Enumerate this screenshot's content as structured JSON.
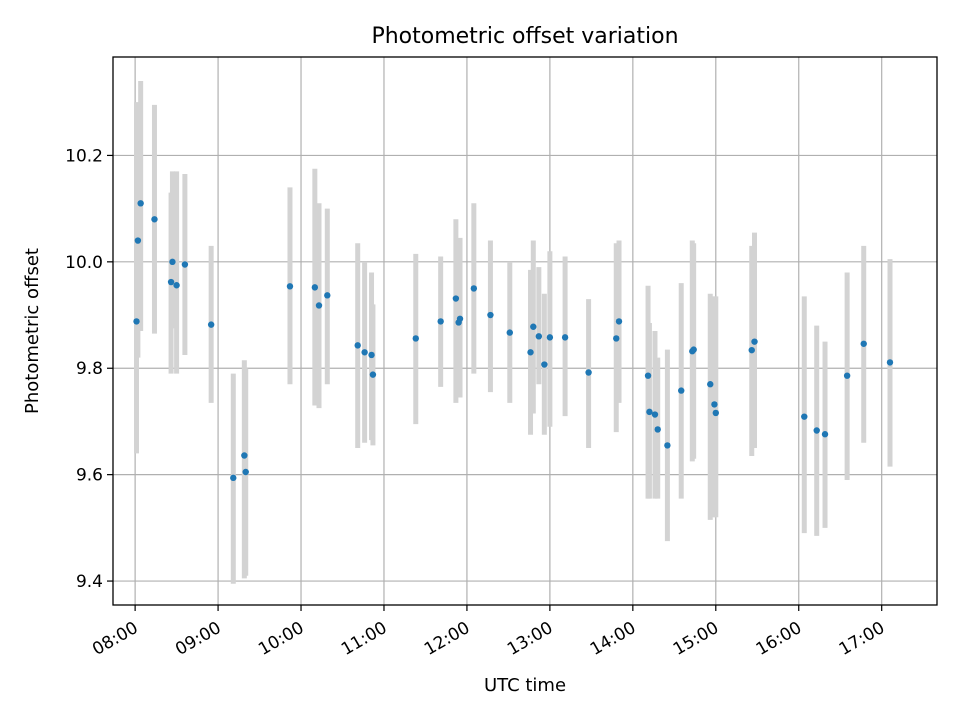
{
  "chart_data": {
    "type": "scatter",
    "title": "Photometric offset variation",
    "xlabel": "UTC time",
    "ylabel": "Photometric offset",
    "x_ticks": [
      "08:00",
      "09:00",
      "10:00",
      "11:00",
      "12:00",
      "13:00",
      "14:00",
      "15:00",
      "16:00",
      "17:00"
    ],
    "y_ticks": [
      9.4,
      9.6,
      9.8,
      10.0,
      10.2
    ],
    "y_tick_labels": [
      "9.4",
      "9.6",
      "9.8",
      "10.0",
      "10.2"
    ],
    "xlim": [
      "07:44",
      "17:40"
    ],
    "ylim": [
      9.355,
      10.385
    ],
    "grid": true,
    "marker_color": "#1f77b4",
    "errorbar_color": "#d3d3d3",
    "series": [
      {
        "x": [
          "08:01",
          "08:02",
          "08:04",
          "08:14",
          "08:26",
          "08:27",
          "08:30",
          "08:36",
          "08:55",
          "09:11",
          "09:19",
          "09:20",
          "09:52",
          "10:10",
          "10:13",
          "10:19",
          "10:41",
          "10:46",
          "10:51",
          "10:52",
          "11:23",
          "11:41",
          "11:52",
          "11:54",
          "11:55",
          "12:05",
          "12:17",
          "12:31",
          "12:46",
          "12:48",
          "12:52",
          "12:56",
          "13:00",
          "13:11",
          "13:28",
          "13:48",
          "13:50",
          "14:11",
          "14:12",
          "14:16",
          "14:18",
          "14:25",
          "14:35",
          "14:43",
          "14:44",
          "14:56",
          "14:59",
          "15:00",
          "15:26",
          "15:28",
          "16:04",
          "16:13",
          "16:19",
          "16:35",
          "16:47",
          "17:06"
        ],
        "y": [
          9.888,
          10.04,
          10.11,
          10.08,
          9.962,
          10.0,
          9.956,
          9.995,
          9.882,
          9.594,
          9.636,
          9.605,
          9.954,
          9.952,
          9.918,
          9.937,
          9.843,
          9.83,
          9.825,
          9.788,
          9.856,
          9.888,
          9.931,
          9.886,
          9.893,
          9.95,
          9.9,
          9.867,
          9.83,
          9.878,
          9.86,
          9.807,
          9.858,
          9.858,
          9.792,
          9.856,
          9.888,
          9.786,
          9.718,
          9.713,
          9.685,
          9.655,
          9.758,
          9.832,
          9.835,
          9.77,
          9.732,
          9.716,
          9.834,
          9.85,
          9.709,
          9.683,
          9.676,
          9.786,
          9.846,
          9.811
        ],
        "yerr_low": [
          9.64,
          9.82,
          9.87,
          9.865,
          9.79,
          9.875,
          9.79,
          9.825,
          9.735,
          9.395,
          9.405,
          9.41,
          9.77,
          9.73,
          9.725,
          9.77,
          9.65,
          9.66,
          9.665,
          9.655,
          9.695,
          9.765,
          9.735,
          9.745,
          9.745,
          9.79,
          9.755,
          9.735,
          9.675,
          9.715,
          9.77,
          9.675,
          9.69,
          9.71,
          9.65,
          9.68,
          9.735,
          9.555,
          9.555,
          9.555,
          9.555,
          9.475,
          9.555,
          9.625,
          9.63,
          9.515,
          9.52,
          9.52,
          9.635,
          9.65,
          9.49,
          9.485,
          9.5,
          9.59,
          9.66,
          9.615
        ],
        "yerr_high": [
          10.3,
          10.3,
          10.34,
          10.295,
          10.13,
          10.17,
          10.17,
          10.165,
          10.03,
          9.79,
          9.815,
          9.8,
          10.14,
          10.175,
          10.11,
          10.1,
          10.035,
          10.0,
          9.98,
          9.92,
          10.015,
          10.01,
          10.08,
          10.03,
          10.045,
          10.11,
          10.04,
          10.0,
          9.985,
          10.04,
          9.99,
          9.94,
          10.02,
          10.01,
          9.93,
          10.035,
          10.04,
          9.955,
          9.885,
          9.87,
          9.82,
          9.835,
          9.96,
          10.04,
          10.035,
          9.94,
          9.935,
          9.935,
          10.03,
          10.055,
          9.935,
          9.88,
          9.85,
          9.98,
          10.03,
          10.005
        ]
      }
    ]
  }
}
